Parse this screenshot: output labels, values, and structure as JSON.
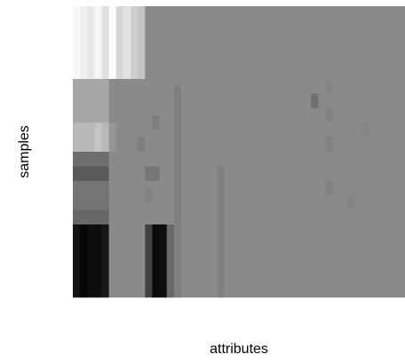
{
  "chart_data": {
    "type": "heatmap",
    "title": "",
    "xlabel": "attributes",
    "ylabel": "samples",
    "grid": false,
    "legend": "none",
    "colormap": "grayscale",
    "value_range": [
      0,
      255
    ],
    "n_cols": 46,
    "n_rows": 40,
    "background_value": 138,
    "blocks": [
      {
        "r0": 0,
        "r1": 10,
        "c0": 0,
        "c1": 1,
        "v": 248
      },
      {
        "r0": 0,
        "r1": 10,
        "c0": 1,
        "c1": 2,
        "v": 240
      },
      {
        "r0": 0,
        "r1": 10,
        "c0": 2,
        "c1": 3,
        "v": 232
      },
      {
        "r0": 0,
        "r1": 10,
        "c0": 3,
        "c1": 4,
        "v": 246
      },
      {
        "r0": 0,
        "r1": 10,
        "c0": 4,
        "c1": 5,
        "v": 224
      },
      {
        "r0": 0,
        "r1": 10,
        "c0": 5,
        "c1": 6,
        "v": 250
      },
      {
        "r0": 0,
        "r1": 10,
        "c0": 6,
        "c1": 7,
        "v": 214
      },
      {
        "r0": 0,
        "r1": 10,
        "c0": 7,
        "c1": 8,
        "v": 226
      },
      {
        "r0": 0,
        "r1": 10,
        "c0": 8,
        "c1": 9,
        "v": 206
      },
      {
        "r0": 0,
        "r1": 10,
        "c0": 9,
        "c1": 10,
        "v": 196
      },
      {
        "r0": 10,
        "r1": 16,
        "c0": 0,
        "c1": 5,
        "v": 166
      },
      {
        "r0": 16,
        "r1": 20,
        "c0": 0,
        "c1": 5,
        "v": 184
      },
      {
        "r0": 16,
        "r1": 20,
        "c0": 3,
        "c1": 4,
        "v": 196
      },
      {
        "r0": 16,
        "r1": 20,
        "c0": 5,
        "c1": 6,
        "v": 150
      },
      {
        "r0": 20,
        "r1": 22,
        "c0": 0,
        "c1": 5,
        "v": 110
      },
      {
        "r0": 22,
        "r1": 24,
        "c0": 0,
        "c1": 5,
        "v": 90
      },
      {
        "r0": 24,
        "r1": 28,
        "c0": 0,
        "c1": 5,
        "v": 116
      },
      {
        "r0": 28,
        "r1": 30,
        "c0": 0,
        "c1": 5,
        "v": 104
      },
      {
        "r0": 30,
        "r1": 40,
        "c0": 0,
        "c1": 1,
        "v": 20
      },
      {
        "r0": 30,
        "r1": 40,
        "c0": 1,
        "c1": 2,
        "v": 6
      },
      {
        "r0": 30,
        "r1": 40,
        "c0": 2,
        "c1": 4,
        "v": 14
      },
      {
        "r0": 30,
        "r1": 40,
        "c0": 4,
        "c1": 5,
        "v": 24
      },
      {
        "r0": 30,
        "r1": 40,
        "c0": 10,
        "c1": 11,
        "v": 66
      },
      {
        "r0": 30,
        "r1": 40,
        "c0": 11,
        "c1": 12,
        "v": 10
      },
      {
        "r0": 30,
        "r1": 40,
        "c0": 12,
        "c1": 13,
        "v": 14
      },
      {
        "r0": 30,
        "r1": 40,
        "c0": 13,
        "c1": 14,
        "v": 104
      },
      {
        "r0": 11,
        "r1": 40,
        "c0": 14,
        "c1": 15,
        "v": 128
      },
      {
        "r0": 15,
        "r1": 17,
        "c0": 11,
        "c1": 12,
        "v": 126
      },
      {
        "r0": 18,
        "r1": 20,
        "c0": 9,
        "c1": 10,
        "v": 126
      },
      {
        "r0": 22,
        "r1": 24,
        "c0": 10,
        "c1": 12,
        "v": 118
      },
      {
        "r0": 25,
        "r1": 27,
        "c0": 10,
        "c1": 11,
        "v": 130
      },
      {
        "r0": 22,
        "r1": 40,
        "c0": 20,
        "c1": 21,
        "v": 128
      },
      {
        "r0": 12,
        "r1": 14,
        "c0": 33,
        "c1": 34,
        "v": 112
      },
      {
        "r0": 10,
        "r1": 12,
        "c0": 35,
        "c1": 36,
        "v": 132
      },
      {
        "r0": 14,
        "r1": 16,
        "c0": 35,
        "c1": 36,
        "v": 130
      },
      {
        "r0": 18,
        "r1": 20,
        "c0": 35,
        "c1": 36,
        "v": 130
      },
      {
        "r0": 24,
        "r1": 26,
        "c0": 35,
        "c1": 36,
        "v": 130
      },
      {
        "r0": 16,
        "r1": 18,
        "c0": 40,
        "c1": 41,
        "v": 132
      },
      {
        "r0": 26,
        "r1": 28,
        "c0": 38,
        "c1": 39,
        "v": 132
      }
    ]
  }
}
